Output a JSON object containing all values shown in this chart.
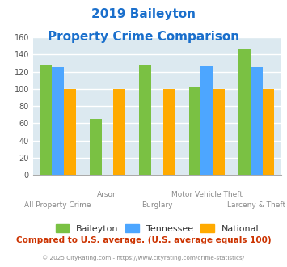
{
  "title_line1": "2019 Baileyton",
  "title_line2": "Property Crime Comparison",
  "title_color": "#1a6fcc",
  "categories": [
    "All Property Crime",
    "Arson",
    "Burglary",
    "Motor Vehicle Theft",
    "Larceny & Theft"
  ],
  "baileyton": [
    128,
    65,
    128,
    103,
    146
  ],
  "tennessee": [
    125,
    0,
    0,
    127,
    125
  ],
  "national": [
    100,
    100,
    100,
    100,
    100
  ],
  "color_baileyton": "#7ac143",
  "color_tennessee": "#4da6ff",
  "color_national": "#ffaa00",
  "ylim": [
    0,
    160
  ],
  "yticks": [
    0,
    20,
    40,
    60,
    80,
    100,
    120,
    140,
    160
  ],
  "background_color": "#dce9f0",
  "grid_color": "#ffffff",
  "xlabel_color": "#888888",
  "footer_text": "Compared to U.S. average. (U.S. average equals 100)",
  "footer_color": "#cc3300",
  "copyright_text": "© 2025 CityRating.com - https://www.cityrating.com/crime-statistics/",
  "copyright_color": "#888888"
}
